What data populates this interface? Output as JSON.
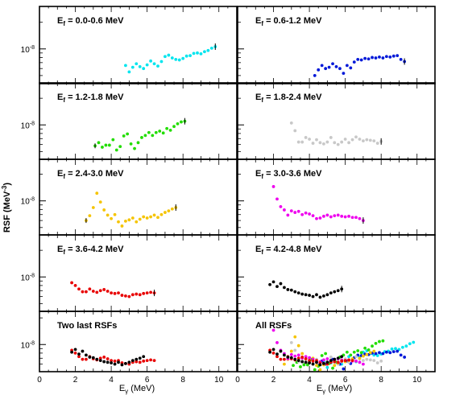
{
  "figure": {
    "ylabel": "RSF (MeV",
    "ylabel_sup": "-3",
    "ylabel_close": ")",
    "xlabel_main": "E",
    "xlabel_sub": "γ",
    "xlabel_unit": " (MeV)",
    "ytick_base": "10",
    "ytick_exp": "-8",
    "xticks": [
      "0",
      "2",
      "4",
      "6",
      "8",
      "10"
    ]
  },
  "chart_data": {
    "type": "scatter",
    "x_range": [
      0,
      11
    ],
    "y_scale": "log",
    "ytick_value": 1e-08,
    "colors": {
      "0.0-0.6": "#00e5ee",
      "0.6-1.2": "#0018d8",
      "1.2-1.8": "#22dd00",
      "1.8-2.4": "#c8c8c8",
      "2.4-3.0": "#f5c400",
      "3.0-3.6": "#ee00ee",
      "3.6-4.2": "#e80000",
      "4.2-4.8": "#000000"
    },
    "panels": [
      {
        "id": "p1",
        "label_prefix": "E",
        "label_sub": "f",
        "label_text": " = 0.0-0.6 MeV",
        "series": [
          {
            "range": "0.0-0.6",
            "x": [
              4.8,
              5.0,
              5.2,
              5.4,
              5.6,
              5.8,
              6.0,
              6.2,
              6.4,
              6.6,
              6.8,
              7.0,
              7.2,
              7.4,
              7.6,
              7.8,
              8.0,
              8.2,
              8.4,
              8.6,
              8.8,
              9.0,
              9.2,
              9.4,
              9.6,
              9.8
            ],
            "y": [
              6.5e-09,
              5.5e-09,
              6.2e-09,
              6.8e-09,
              6.3e-09,
              6e-09,
              6.6e-09,
              7.3e-09,
              6.8e-09,
              6.4e-09,
              7.2e-09,
              8.2e-09,
              8.5e-09,
              7.9e-09,
              7.6e-09,
              7.5e-09,
              7.8e-09,
              8.3e-09,
              8.4e-09,
              8.9e-09,
              9e-09,
              8.8e-09,
              9.3e-09,
              9.6e-09,
              1.02e-08,
              1.06e-08
            ]
          }
        ]
      },
      {
        "id": "p2",
        "label_prefix": "E",
        "label_sub": "f",
        "label_text": " = 0.6-1.2 MeV",
        "series": [
          {
            "range": "0.6-1.2",
            "x": [
              4.3,
              4.5,
              4.7,
              4.9,
              5.1,
              5.3,
              5.5,
              5.7,
              5.9,
              6.1,
              6.3,
              6.5,
              6.7,
              6.9,
              7.1,
              7.3,
              7.5,
              7.7,
              7.9,
              8.1,
              8.3,
              8.5,
              8.7,
              8.9,
              9.1,
              9.3
            ],
            "y": [
              5e-09,
              5.8e-09,
              6.5e-09,
              6e-09,
              6.2e-09,
              6.8e-09,
              6.3e-09,
              6e-09,
              5.3e-09,
              6.5e-09,
              6.1e-09,
              7.1e-09,
              7.6e-09,
              7.5e-09,
              7.8e-09,
              7.7e-09,
              8e-09,
              7.9e-09,
              8.1e-09,
              7.9e-09,
              8.2e-09,
              8.1e-09,
              8.3e-09,
              8.4e-09,
              7.6e-09,
              7.2e-09
            ]
          }
        ]
      },
      {
        "id": "p3",
        "label_prefix": "E",
        "label_sub": "f",
        "label_text": " = 1.2-1.8 MeV",
        "series": [
          {
            "range": "1.2-1.8",
            "x": [
              3.1,
              3.3,
              3.5,
              3.7,
              3.9,
              4.1,
              4.3,
              4.5,
              4.7,
              4.9,
              5.1,
              5.3,
              5.5,
              5.7,
              5.9,
              6.1,
              6.3,
              6.5,
              6.7,
              6.9,
              7.1,
              7.3,
              7.5,
              7.7,
              7.9,
              8.1
            ],
            "y": [
              5.8e-09,
              6.3e-09,
              5.6e-09,
              5.9e-09,
              5.9e-09,
              6.8e-09,
              5.2e-09,
              5.7e-09,
              7.5e-09,
              7.9e-09,
              6.1e-09,
              5.4e-09,
              6.3e-09,
              7.2e-09,
              7.6e-09,
              8.2e-09,
              7.6e-09,
              8.2e-09,
              8.5e-09,
              8.1e-09,
              9.1e-09,
              8.7e-09,
              9.6e-09,
              1.03e-08,
              1.08e-08,
              1.1e-08
            ]
          }
        ]
      },
      {
        "id": "p4",
        "label_prefix": "E",
        "label_sub": "f",
        "label_text": " = 1.8-2.4 MeV",
        "series": [
          {
            "range": "1.8-2.4",
            "x": [
              3.0,
              3.2,
              3.4,
              3.6,
              3.8,
              4.0,
              4.2,
              4.4,
              4.6,
              4.8,
              5.0,
              5.2,
              5.4,
              5.6,
              5.8,
              6.0,
              6.2,
              6.4,
              6.6,
              6.8,
              7.0,
              7.2,
              7.4,
              7.6,
              7.8,
              8.0
            ],
            "y": [
              1.05e-08,
              8.6e-09,
              6.4e-09,
              6.4e-09,
              7.2e-09,
              6.9e-09,
              6.2e-09,
              6.8e-09,
              6.3e-09,
              6.1e-09,
              6.4e-09,
              7.2e-09,
              6.3e-09,
              6e-09,
              6.4e-09,
              6.9e-09,
              6.3e-09,
              6.8e-09,
              7.3e-09,
              6.9e-09,
              6.6e-09,
              6.8e-09,
              6.7e-09,
              6.6e-09,
              6.2e-09,
              6.5e-09
            ]
          }
        ]
      },
      {
        "id": "p5",
        "label_prefix": "E",
        "label_sub": "f",
        "label_text": " = 2.4-3.0 MeV",
        "series": [
          {
            "range": "2.4-3.0",
            "x": [
              2.6,
              2.8,
              3.0,
              3.2,
              3.4,
              3.6,
              3.8,
              4.0,
              4.2,
              4.4,
              4.6,
              4.8,
              5.0,
              5.2,
              5.4,
              5.6,
              5.8,
              6.0,
              6.2,
              6.4,
              6.6,
              6.8,
              7.0,
              7.2,
              7.4,
              7.6
            ],
            "y": [
              6e-09,
              6.8e-09,
              8.4e-09,
              1.22e-08,
              9.7e-09,
              7.9e-09,
              6.9e-09,
              6.3e-09,
              7e-09,
              5.8e-09,
              5.2e-09,
              5.9e-09,
              6.1e-09,
              6.4e-09,
              5.8e-09,
              6.2e-09,
              6.6e-09,
              6.4e-09,
              6.6e-09,
              6.9e-09,
              6.5e-09,
              7e-09,
              7.4e-09,
              7.7e-09,
              8.1e-09,
              8.4e-09
            ]
          }
        ]
      },
      {
        "id": "p6",
        "label_prefix": "E",
        "label_sub": "f",
        "label_text": " = 3.0-3.6 MeV",
        "series": [
          {
            "range": "3.0-3.6",
            "x": [
              2.0,
              2.2,
              2.4,
              2.6,
              2.8,
              3.0,
              3.2,
              3.4,
              3.6,
              3.8,
              4.0,
              4.2,
              4.4,
              4.6,
              4.8,
              5.0,
              5.2,
              5.4,
              5.6,
              5.8,
              6.0,
              6.2,
              6.4,
              6.6,
              6.8,
              7.0
            ],
            "y": [
              1.45e-08,
              1.05e-08,
              8.6e-09,
              7.9e-09,
              6.9e-09,
              7.7e-09,
              7.4e-09,
              7.6e-09,
              7e-09,
              7.3e-09,
              7.1e-09,
              6.8e-09,
              6.3e-09,
              6.4e-09,
              6.7e-09,
              6.9e-09,
              6.6e-09,
              6.8e-09,
              6.9e-09,
              6.7e-09,
              6.6e-09,
              6.7e-09,
              6.5e-09,
              6.5e-09,
              6.3e-09,
              6e-09
            ]
          }
        ]
      },
      {
        "id": "p7",
        "label_prefix": "E",
        "label_sub": "f",
        "label_text": " = 3.6-4.2 MeV",
        "series": [
          {
            "range": "3.6-4.2",
            "x": [
              1.8,
              2.0,
              2.2,
              2.4,
              2.6,
              2.8,
              3.0,
              3.2,
              3.4,
              3.6,
              3.8,
              4.0,
              4.2,
              4.4,
              4.6,
              4.8,
              5.0,
              5.2,
              5.4,
              5.6,
              5.8,
              6.0,
              6.2,
              6.4
            ],
            "y": [
              8.6e-09,
              8e-09,
              7.3e-09,
              6.8e-09,
              6.8e-09,
              7.3e-09,
              6.9e-09,
              6.7e-09,
              7e-09,
              7.2e-09,
              6.9e-09,
              6.6e-09,
              6.5e-09,
              6.6e-09,
              6.2e-09,
              6.1e-09,
              6e-09,
              6.3e-09,
              6.4e-09,
              6.3e-09,
              6.5e-09,
              6.6e-09,
              6.7e-09,
              6.6e-09
            ]
          }
        ]
      },
      {
        "id": "p8",
        "label_prefix": "E",
        "label_sub": "f",
        "label_text": " = 4.2-4.8 MeV",
        "series": [
          {
            "range": "4.2-4.8",
            "x": [
              1.8,
              2.0,
              2.2,
              2.4,
              2.6,
              2.8,
              3.0,
              3.2,
              3.4,
              3.6,
              3.8,
              4.0,
              4.2,
              4.4,
              4.6,
              4.8,
              5.0,
              5.2,
              5.4,
              5.6,
              5.8
            ],
            "y": [
              8.2e-09,
              8.8e-09,
              7.8e-09,
              8.4e-09,
              7.6e-09,
              7.2e-09,
              7.1e-09,
              6.8e-09,
              6.6e-09,
              6.4e-09,
              6.3e-09,
              6.2e-09,
              6e-09,
              6.3e-09,
              5.9e-09,
              6.1e-09,
              6.3e-09,
              6.6e-09,
              6.8e-09,
              7e-09,
              7.3e-09
            ]
          }
        ]
      },
      {
        "id": "p9",
        "label_text": "Two last RSFs",
        "series": [
          {
            "range": "3.6-4.2",
            "from": "p7"
          },
          {
            "range": "4.2-4.8",
            "from": "p8"
          }
        ]
      },
      {
        "id": "p10",
        "label_text": "All RSFs",
        "series": [
          {
            "range": "0.0-0.6",
            "from": "p1"
          },
          {
            "range": "0.6-1.2",
            "from": "p2"
          },
          {
            "range": "1.2-1.8",
            "from": "p3"
          },
          {
            "range": "1.8-2.4",
            "from": "p4"
          },
          {
            "range": "2.4-3.0",
            "from": "p5"
          },
          {
            "range": "3.0-3.6",
            "from": "p6"
          },
          {
            "range": "3.6-4.2",
            "from": "p7"
          },
          {
            "range": "4.2-4.8",
            "from": "p8"
          }
        ]
      }
    ]
  }
}
